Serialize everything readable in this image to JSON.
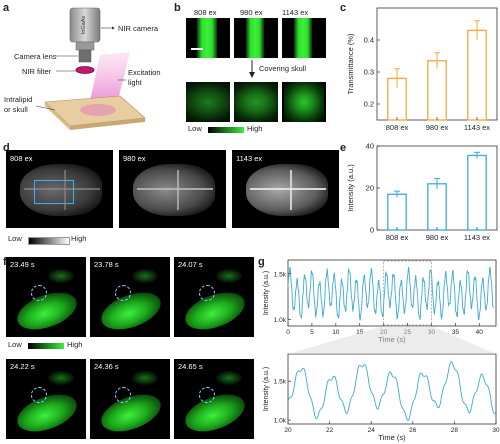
{
  "panels": {
    "a": {
      "letter": "a",
      "camera_body_text": "InGaAs",
      "nir_camera": "NIR camera",
      "camera_lens": "Camera lens",
      "nir_filter": "NIR filter",
      "excitation_light_1": "Excitation",
      "excitation_light_2": "light",
      "sample_1": "Intralipid",
      "sample_2": "or skull"
    },
    "b": {
      "letter": "b",
      "labels": [
        "808 ex",
        "980 ex",
        "1143 ex"
      ],
      "arrow_text": "Covering skull",
      "scale_low": "Low",
      "scale_high": "High"
    },
    "c": {
      "letter": "c"
    },
    "d": {
      "letter": "d",
      "labels": [
        "808 ex",
        "980 ex",
        "1143 ex"
      ],
      "scale_low": "Low",
      "scale_high": "High"
    },
    "e": {
      "letter": "e"
    },
    "f": {
      "letter": "f",
      "timestamps": [
        "23.49 s",
        "23.78 s",
        "24.07 s",
        "24.22 s",
        "24.36 s",
        "24.65 s"
      ],
      "scale_low": "Low",
      "scale_high": "High"
    },
    "g": {
      "letter": "g"
    }
  },
  "colors": {
    "bar_orange": "#f0a83c",
    "bar_blue": "#3fa9d8",
    "line_blue": "#3fa9d8",
    "green": "#2ee82e"
  },
  "chart_data": [
    {
      "id": "c",
      "type": "bar",
      "categories": [
        "808 ex",
        "980 ex",
        "1143 ex"
      ],
      "values": [
        0.28,
        0.335,
        0.43
      ],
      "errors": [
        0.03,
        0.025,
        0.03
      ],
      "ylabel": "Transmittance (%)",
      "ylim": [
        0.15,
        0.5
      ],
      "yticks": [
        0.2,
        0.3,
        0.4
      ]
    },
    {
      "id": "e",
      "type": "bar",
      "categories": [
        "808 ex",
        "980 ex",
        "1143 ex"
      ],
      "values": [
        17,
        22,
        35.5
      ],
      "errors": [
        1.5,
        2.5,
        1.5
      ],
      "ylabel": "Intensity (a.u.)",
      "ylim": [
        0,
        40
      ],
      "yticks": [
        0,
        20,
        40
      ]
    },
    {
      "id": "g_top",
      "type": "line",
      "xlabel": "Time (s)",
      "ylabel": "Intensity (a.u.)",
      "xlim": [
        0,
        43.5
      ],
      "ylim": [
        930,
        1650
      ],
      "xticks": [
        0,
        5,
        10,
        15,
        20,
        25,
        30,
        35,
        40
      ],
      "yticks": [
        {
          "v": 1000,
          "label": "1.0k"
        },
        {
          "v": 1500,
          "label": "1.5k"
        }
      ],
      "t_start": 0,
      "t_end": 43,
      "dt": 0.1,
      "base": 1280,
      "amplitude": 200,
      "period": 1.55
    },
    {
      "id": "g_bottom",
      "type": "line",
      "xlabel": "Time (s)",
      "ylabel": "Intensity (a.u.)",
      "xlim": [
        20,
        30
      ],
      "ylim": [
        950,
        1850
      ],
      "xticks": [
        20,
        22,
        24,
        26,
        28,
        30
      ],
      "yticks": [
        {
          "v": 1000,
          "label": "1.0k"
        },
        {
          "v": 1500,
          "label": "1.5k"
        }
      ],
      "t_start": 20,
      "t_end": 30,
      "dt": 0.02,
      "base": 1380,
      "amplitude": 260,
      "period": 1.45
    }
  ]
}
